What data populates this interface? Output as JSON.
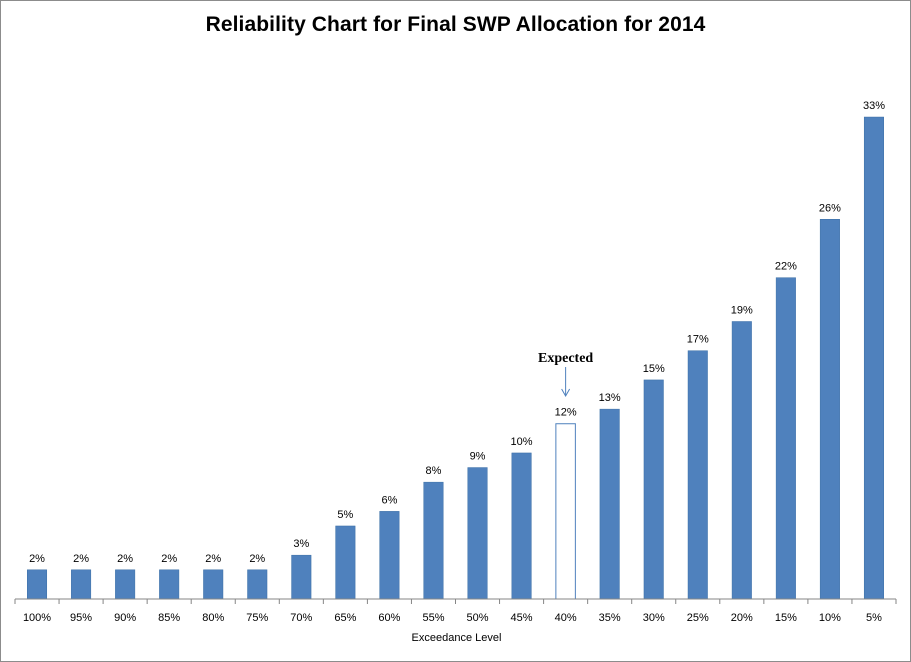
{
  "chart_data": {
    "type": "bar",
    "title": "Reliability Chart for Final SWP Allocation for 2014",
    "xlabel": "Exceedance Level",
    "ylabel": "",
    "categories": [
      "100%",
      "95%",
      "90%",
      "85%",
      "80%",
      "75%",
      "70%",
      "65%",
      "60%",
      "55%",
      "50%",
      "45%",
      "40%",
      "35%",
      "30%",
      "25%",
      "20%",
      "15%",
      "10%",
      "5%"
    ],
    "values": [
      2,
      2,
      2,
      2,
      2,
      2,
      3,
      5,
      6,
      8,
      9,
      10,
      12,
      13,
      15,
      17,
      19,
      22,
      26,
      33
    ],
    "data_labels": [
      "2%",
      "2%",
      "2%",
      "2%",
      "2%",
      "2%",
      "3%",
      "5%",
      "6%",
      "8%",
      "9%",
      "10%",
      "12%",
      "13%",
      "15%",
      "17%",
      "19%",
      "22%",
      "26%",
      "33%"
    ],
    "ylim": [
      0,
      38
    ],
    "grid": false,
    "legend": "none",
    "highlighted_category": "40%",
    "annotation": {
      "text": "Expected",
      "target_category": "40%"
    },
    "colors": {
      "bar_fill": "#4f81bd",
      "bar_stroke": "#3a6ea5",
      "highlight_fill": "#ffffff",
      "highlight_stroke": "#4f81bd",
      "arrow": "#4f81bd",
      "axis": "#868686"
    }
  }
}
